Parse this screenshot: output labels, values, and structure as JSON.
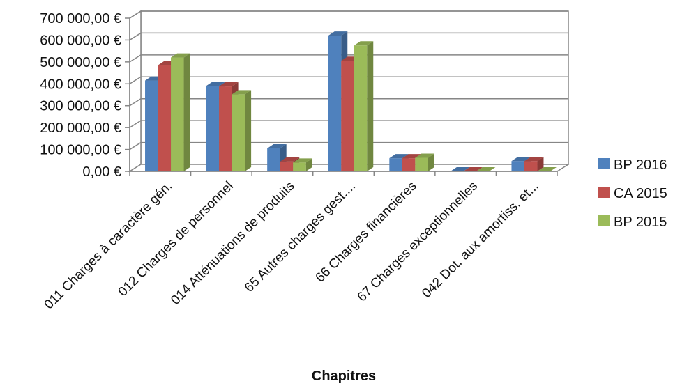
{
  "chart_data": {
    "type": "bar",
    "style": "3d-clustered-column",
    "categories": [
      "011 Charges à caractère gén.",
      "012 Charges de personnel",
      "014 Atténuations de produits",
      "65 Autres charges gest....",
      "66 Charges financières",
      "67 Charges exceptionnelles",
      "042 Dot. aux amortiss. et..."
    ],
    "series": [
      {
        "name": "BP 2016",
        "color": "#4F81BD",
        "values": [
          415000,
          390000,
          105000,
          620000,
          60000,
          0,
          47000
        ]
      },
      {
        "name": "CA 2015",
        "color": "#C0504D",
        "values": [
          485000,
          388000,
          45000,
          505000,
          60000,
          0,
          47000
        ]
      },
      {
        "name": "BP 2015",
        "color": "#9BBB59",
        "values": [
          520000,
          352000,
          40000,
          575000,
          62000,
          0,
          0
        ]
      }
    ],
    "xlabel": "Chapitres",
    "ylabel": "",
    "ylim": [
      0,
      700000
    ],
    "yticks": [
      0,
      100000,
      200000,
      300000,
      400000,
      500000,
      600000,
      700000
    ],
    "ytick_labels": [
      "0,00 €",
      "100 000,00 €",
      "200 000,00 €",
      "300 000,00 €",
      "400 000,00 €",
      "500 000,00 €",
      "600 000,00 €",
      "700 000,00 €"
    ],
    "grid": true,
    "legend_position": "right"
  }
}
